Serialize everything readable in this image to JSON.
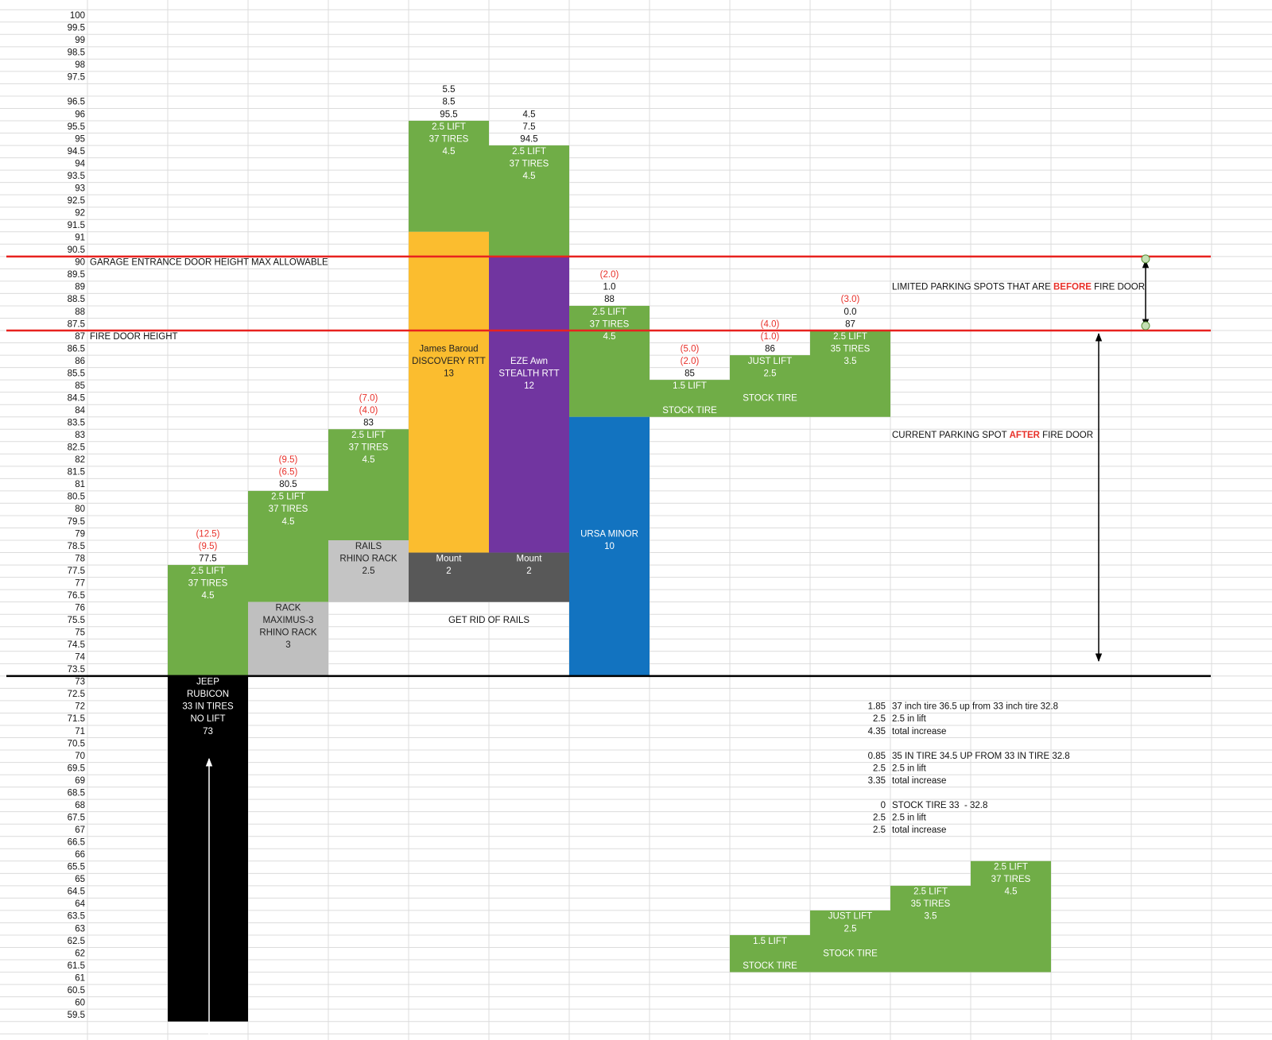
{
  "row_labels": [
    100,
    99.5,
    99,
    98.5,
    98,
    97.5,
    null,
    96.5,
    96,
    95.5,
    95,
    94.5,
    94,
    93.5,
    93,
    92.5,
    92,
    91.5,
    91,
    90.5,
    90,
    89.5,
    89,
    88.5,
    88,
    87.5,
    87,
    86.5,
    86,
    85.5,
    85,
    84.5,
    84,
    83.5,
    83,
    82.5,
    82,
    81.5,
    81,
    80.5,
    80,
    79.5,
    79,
    78.5,
    78,
    77.5,
    77,
    76.5,
    76,
    75.5,
    75,
    74.5,
    74,
    73.5,
    73,
    72.5,
    72,
    71.5,
    71,
    70.5,
    70,
    69.5,
    69,
    68.5,
    68,
    67.5,
    67,
    66.5,
    66,
    65.5,
    65,
    64.5,
    64,
    63.5,
    63,
    62.5,
    62,
    61.5,
    61,
    60.5,
    60,
    59.5
  ],
  "notes": {
    "garage": "GARAGE ENTRANCE DOOR HEIGHT MAX ALLOWABLE",
    "fire": "FIRE DOOR HEIGHT",
    "limited": [
      "LIMITED PARKING SPOTS THAT ARE ",
      "BEFORE",
      " FIRE DOOR"
    ],
    "current": [
      "CURRENT PARKING SPOT ",
      "AFTER",
      " FIRE DOOR"
    ],
    "rails": "GET RID OF RAILS"
  },
  "columns": [
    {
      "above": [
        {
          "text": "(12.5)",
          "color": "#e8312a"
        },
        {
          "text": "(9.5)",
          "color": "#e8312a"
        },
        {
          "text": "77.5",
          "color": "#111111"
        }
      ],
      "blocks": [
        {
          "color": "#70ad47",
          "text_color": "#ffffff",
          "lines": [
            "2.5 LIFT",
            "37 TIRES",
            "4.5"
          ]
        },
        {
          "color": "#000000",
          "text_color": "#ffffff",
          "lines": [
            "JEEP",
            "RUBICON",
            "33 IN TIRES",
            "NO LIFT",
            "73"
          ]
        }
      ]
    },
    {
      "above": [
        {
          "text": "(9.5)",
          "color": "#e8312a"
        },
        {
          "text": "(6.5)",
          "color": "#e8312a"
        },
        {
          "text": "80.5",
          "color": "#111111"
        }
      ],
      "blocks": [
        {
          "color": "#70ad47",
          "text_color": "#ffffff",
          "lines": [
            "2.5 LIFT",
            "37 TIRES",
            "4.5"
          ]
        },
        {
          "color": "#bfbfbf",
          "text_color": "#222222",
          "lines": [
            "RACK",
            "MAXIMUS-3",
            "RHINO RACK",
            "3"
          ]
        }
      ]
    },
    {
      "above": [
        {
          "text": "(7.0)",
          "color": "#e8312a"
        },
        {
          "text": "(4.0)",
          "color": "#e8312a"
        },
        {
          "text": "83",
          "color": "#111111"
        }
      ],
      "blocks": [
        {
          "color": "#70ad47",
          "text_color": "#ffffff",
          "lines": [
            "2.5 LIFT",
            "37 TIRES",
            "4.5"
          ]
        },
        {
          "color": "#c4c4c4",
          "text_color": "#222222",
          "lines": [
            "RAILS",
            "RHINO RACK",
            "2.5"
          ]
        }
      ]
    },
    {
      "above": [
        {
          "text": "5.5",
          "color": "#111111"
        },
        {
          "text": "8.5",
          "color": "#111111"
        },
        {
          "text": "95.5",
          "color": "#111111"
        }
      ],
      "blocks": [
        {
          "color": "#70ad47",
          "text_color": "#ffffff",
          "lines": [
            "2.5 LIFT",
            "37 TIRES",
            "4.5"
          ]
        },
        {
          "color": "#fbbd2f",
          "text_color": "#222222",
          "lines": [
            "James Baroud",
            "DISCOVERY RTT",
            "13"
          ]
        },
        {
          "color": "#585858",
          "text_color": "#ffffff",
          "lines": [
            "Mount",
            "2"
          ]
        }
      ]
    },
    {
      "above": [
        {
          "text": "4.5",
          "color": "#111111"
        },
        {
          "text": "7.5",
          "color": "#111111"
        },
        {
          "text": "94.5",
          "color": "#111111"
        }
      ],
      "blocks": [
        {
          "color": "#70ad47",
          "text_color": "#ffffff",
          "lines": [
            "2.5 LIFT",
            "37 TIRES",
            "4.5"
          ]
        },
        {
          "color": "#7135a0",
          "text_color": "#ffffff",
          "lines": [
            "EZE Awn",
            "STEALTH RTT",
            "12"
          ]
        },
        {
          "color": "#585858",
          "text_color": "#ffffff",
          "lines": [
            "Mount",
            "2"
          ]
        }
      ]
    },
    {
      "above": [
        {
          "text": "(2.0)",
          "color": "#e8312a"
        },
        {
          "text": "1.0",
          "color": "#111111"
        },
        {
          "text": "88",
          "color": "#111111"
        }
      ],
      "blocks": [
        {
          "color": "#70ad47",
          "text_color": "#ffffff",
          "lines": [
            "2.5 LIFT",
            "37 TIRES",
            "4.5"
          ]
        },
        {
          "color": "#1273c0",
          "text_color": "#ffffff",
          "lines": [
            "URSA MINOR",
            "10"
          ]
        }
      ]
    },
    {
      "above": [
        {
          "text": "(5.0)",
          "color": "#e8312a"
        },
        {
          "text": "(2.0)",
          "color": "#e8312a"
        },
        {
          "text": "85",
          "color": "#111111"
        }
      ],
      "blocks": [
        {
          "color": "#70ad47",
          "text_color": "#ffffff",
          "lines": [
            "1.5 LIFT",
            "STOCK TIRE"
          ]
        }
      ]
    },
    {
      "above": [
        {
          "text": "(4.0)",
          "color": "#e8312a"
        },
        {
          "text": "(1.0)",
          "color": "#e8312a"
        },
        {
          "text": "86",
          "color": "#111111"
        }
      ],
      "blocks": [
        {
          "color": "#70ad47",
          "text_color": "#ffffff",
          "lines": [
            "JUST LIFT",
            "2.5",
            "STOCK TIRE"
          ]
        }
      ]
    },
    {
      "above": [
        {
          "text": "(3.0)",
          "color": "#e8312a"
        },
        {
          "text": "0.0",
          "color": "#111111"
        },
        {
          "text": "87",
          "color": "#111111"
        }
      ],
      "blocks": [
        {
          "color": "#70ad47",
          "text_color": "#ffffff",
          "lines": [
            "2.5 LIFT",
            "35 TIRES",
            "3.5"
          ]
        }
      ]
    },
    {
      "blocks": [
        {
          "color": "#70ad47",
          "text_color": "#ffffff",
          "lines": [
            "1.5 LIFT",
            "STOCK TIRE"
          ]
        }
      ]
    },
    {
      "blocks": [
        {
          "color": "#70ad47",
          "text_color": "#ffffff",
          "lines": [
            "JUST LIFT",
            "2.5",
            "STOCK TIRE"
          ]
        }
      ]
    },
    {
      "blocks": [
        {
          "color": "#70ad47",
          "text_color": "#ffffff",
          "lines": [
            "2.5 LIFT",
            "35 TIRES",
            "3.5"
          ]
        }
      ]
    },
    {
      "blocks": [
        {
          "color": "#70ad47",
          "text_color": "#ffffff",
          "lines": [
            "2.5 LIFT",
            "37 TIRES",
            "4.5"
          ]
        }
      ]
    }
  ],
  "calc": [
    {
      "value": "1.85",
      "text": "37 inch tire 36.5 up from 33 inch tire 32.8"
    },
    {
      "value": "2.5",
      "text": "2.5 in lift"
    },
    {
      "value": "4.35",
      "text": "total increase"
    },
    {
      "value": "0.85",
      "text": "35 IN TIRE 34.5 UP FROM 33 IN TIRE 32.8"
    },
    {
      "value": "2.5",
      "text": "2.5 in lift"
    },
    {
      "value": "3.35",
      "text": "total increase"
    },
    {
      "value": "0",
      "text": "STOCK TIRE 33  - 32.8"
    },
    {
      "value": "2.5",
      "text": "2.5 in lift"
    },
    {
      "value": "2.5",
      "text": "total increase"
    }
  ]
}
